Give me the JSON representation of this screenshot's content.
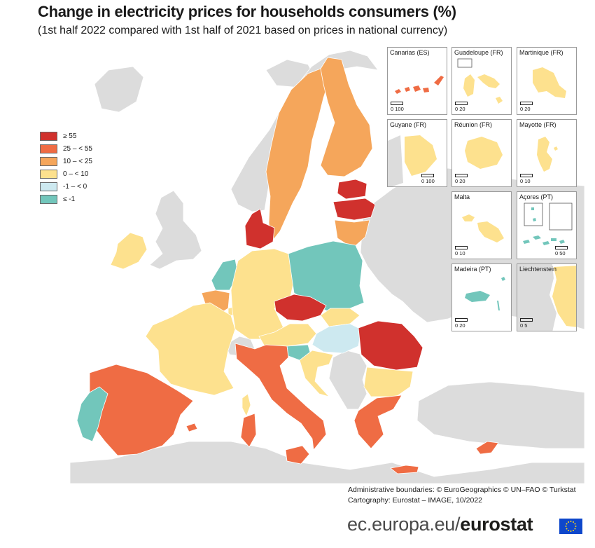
{
  "title": "Change in electricity prices for households consumers (%)",
  "subtitle": "(1st half 2022 compared with 1st half of 2021 based on prices in national currency)",
  "legend": [
    {
      "label": "≥ 55",
      "color": "#d0312d"
    },
    {
      "label": "25 – < 55",
      "color": "#ef6c44"
    },
    {
      "label": "10 – < 25",
      "color": "#f5a65b"
    },
    {
      "label": "0 – < 10",
      "color": "#fde18e"
    },
    {
      "label": "-1 – < 0",
      "color": "#cde9f0"
    },
    {
      "label": "≤ -1",
      "color": "#72c6bb"
    }
  ],
  "nodata_color": "#dcdcdc",
  "insets": [
    {
      "name": "Canarias (ES)",
      "scale": "0   100",
      "class": "25 – < 55"
    },
    {
      "name": "Guadeloupe (FR)",
      "scale": "0   20",
      "class": "0 – < 10"
    },
    {
      "name": "Martinique (FR)",
      "scale": "0   20",
      "class": "0 – < 10"
    },
    {
      "name": "Guyane (FR)",
      "scale": "0   100",
      "class": "0 – < 10"
    },
    {
      "name": "Réunion (FR)",
      "scale": "0   20",
      "class": "0 – < 10"
    },
    {
      "name": "Mayotte (FR)",
      "scale": "0   10",
      "class": "0 – < 10"
    },
    {
      "name": "Malta",
      "scale": "0   10",
      "class": "0 – < 10"
    },
    {
      "name": "Açores (PT)",
      "scale": "0   50",
      "class": "≤ -1"
    },
    {
      "name": "Madeira (PT)",
      "scale": "0   20",
      "class": "≤ -1"
    },
    {
      "name": "Liechtenstein",
      "scale": "0   5",
      "class": "0 – < 10"
    }
  ],
  "credits": {
    "line1": "Administrative boundaries: © EuroGeographics © UN–FAO © Turkstat",
    "line2": "Cartography: Eurostat – IMAGE, 10/2022"
  },
  "footer": {
    "prefix": "ec.europa.eu/",
    "brand": "eurostat"
  }
}
